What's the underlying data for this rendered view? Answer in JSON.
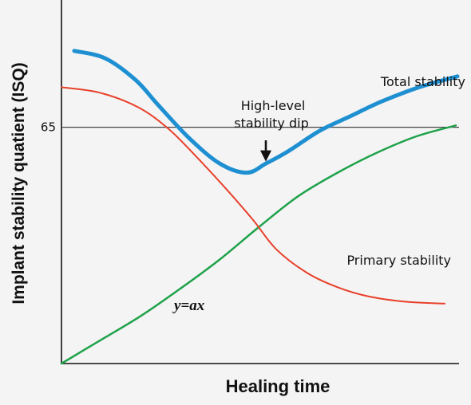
{
  "chart_data": {
    "type": "line",
    "xlabel": "Healing time",
    "ylabel": "Implant stability quatient (ISQ)",
    "yticks": [
      {
        "value": 65,
        "label": "65"
      }
    ],
    "reference_line": {
      "y": 65
    },
    "ylim": [
      0,
      100
    ],
    "xlim": [
      0,
      1
    ],
    "grid": false,
    "series": [
      {
        "name": "Total stability",
        "color": "#1e90d2",
        "x": [
          0.0,
          0.08,
          0.16,
          0.22,
          0.3,
          0.38,
          0.45,
          0.5,
          0.56,
          0.64,
          0.72,
          0.8,
          0.9,
          1.0
        ],
        "y": [
          86.0,
          84.0,
          78.0,
          71.0,
          62.0,
          55.0,
          52.5,
          55.0,
          58.5,
          64.0,
          68.0,
          72.0,
          76.0,
          79.0
        ]
      },
      {
        "name": "Primary stability",
        "color": "#e8402a",
        "x": [
          0.0,
          0.1,
          0.2,
          0.28,
          0.36,
          0.43,
          0.5,
          0.56,
          0.64,
          0.72,
          0.8,
          0.9,
          1.0
        ],
        "y": [
          76.0,
          74.5,
          70.5,
          64.5,
          56.0,
          48.0,
          39.5,
          31.5,
          25.0,
          21.0,
          18.5,
          17.0,
          16.5
        ]
      },
      {
        "name": "y=ax",
        "color": "#1fa24a",
        "x": [
          0.0,
          0.1,
          0.2,
          0.3,
          0.4,
          0.5,
          0.6,
          0.7,
          0.8,
          0.9,
          1.0
        ],
        "y": [
          0.0,
          6.5,
          13.0,
          20.5,
          28.5,
          37.5,
          46.0,
          52.5,
          58.0,
          62.5,
          65.5
        ]
      }
    ],
    "annotations": [
      {
        "text_lines": [
          "High-level",
          "stability dip"
        ],
        "points_to": {
          "x": 0.5,
          "y": 52.5
        }
      }
    ]
  }
}
